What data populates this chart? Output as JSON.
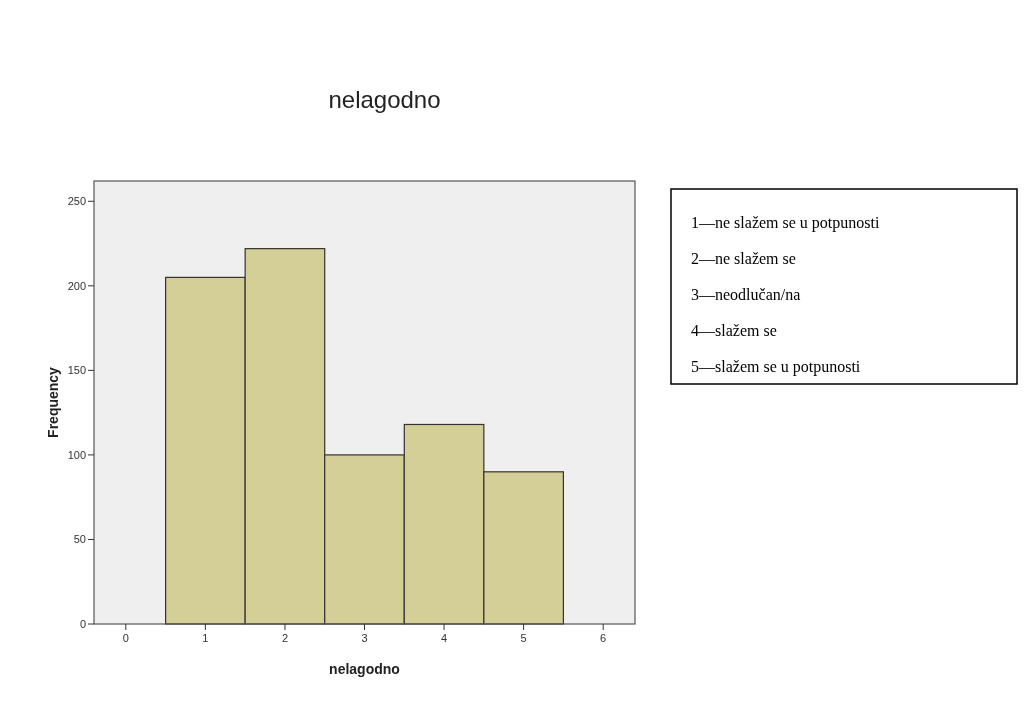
{
  "chart_data": {
    "type": "histogram",
    "title": "nelagodno",
    "xlabel": "nelagodno",
    "ylabel": "Frequency",
    "bins": [
      0.5,
      1.5,
      2.5,
      3.5,
      4.5,
      5.5
    ],
    "values": [
      205,
      222,
      100,
      118,
      90
    ],
    "color": "#d4cf97",
    "xlim": [
      -0.4,
      6.4
    ],
    "xticks": [
      0,
      1,
      2,
      3,
      4,
      5,
      6
    ],
    "ylim": [
      0,
      262
    ],
    "yticks": [
      0,
      50,
      100,
      150,
      200,
      250
    ],
    "grid": false,
    "annotations": [
      "1—ne slažem se u potpunosti",
      "2—ne slažem se",
      "3—neodlučan/na",
      "4—slažem se",
      "5—slažem se u potpunosti"
    ]
  }
}
